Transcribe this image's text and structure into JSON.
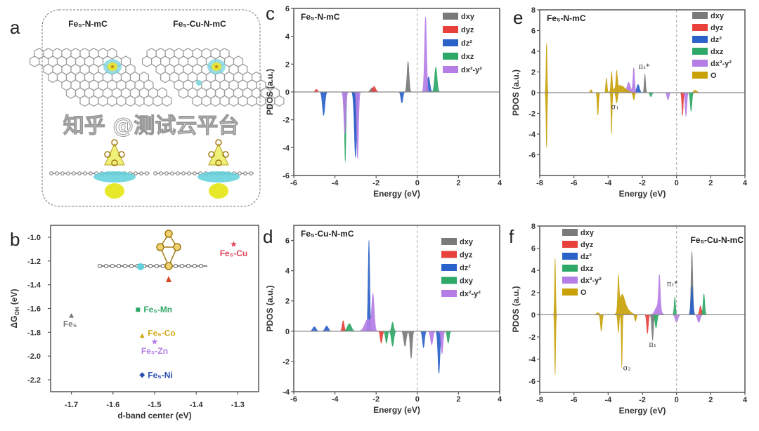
{
  "figure": {
    "watermark": "知乎 @测试云平台"
  },
  "panel_a": {
    "label": "a",
    "titles": [
      "Fe₅-N-mC",
      "Fe₅-Cu-N-mC"
    ]
  },
  "colors": {
    "dxy": "#7a7a7a",
    "dyz": "#e8413c",
    "dz2": "#2a62c9",
    "dxz": "#2ea866",
    "dx2y2": "#b57ee6",
    "O": "#c9a20a"
  },
  "chart_data": [
    {
      "id": "b",
      "panel_label": "b",
      "type": "scatter",
      "xlabel": "d-band center (eV)",
      "ylabel": {
        "main": "ΔG",
        "sub": "OH",
        "unit": " (eV)"
      },
      "xlim": [
        -1.75,
        -1.25
      ],
      "ylim": [
        -2.3,
        -0.9
      ],
      "xticks": [
        "-1.7",
        "-1.6",
        "-1.5",
        "-1.4",
        "-1.3"
      ],
      "yticks": [
        "-1.0",
        "-1.2",
        "-1.4",
        "-1.6",
        "-1.8",
        "-2.0",
        "-2.2"
      ],
      "points": [
        {
          "label": "Fe₅",
          "x": -1.7,
          "y": -1.66,
          "color": "#777777",
          "marker": "triangle"
        },
        {
          "label": "Fe₅-Mn",
          "x": -1.54,
          "y": -1.61,
          "color": "#2ea866",
          "marker": "square"
        },
        {
          "label": "Fe₅-Co",
          "x": -1.53,
          "y": -1.83,
          "color": "#d4a813",
          "marker": "triangle"
        },
        {
          "label": "Fe₅-Zn",
          "x": -1.5,
          "y": -1.88,
          "color": "#b57ee6",
          "marker": "star"
        },
        {
          "label": "Fe₅-Ni",
          "x": -1.53,
          "y": -2.16,
          "color": "#2a4fb0",
          "marker": "diamond"
        },
        {
          "label": "Fe₅-Cu",
          "x": -1.31,
          "y": -1.06,
          "color": "#e0445a",
          "marker": "star"
        }
      ]
    },
    {
      "id": "c",
      "panel_label": "c",
      "type": "area",
      "title": "Fe₅-N-mC",
      "xlabel": "Energy (eV)",
      "ylabel": "PDOS (a.u.)",
      "xlim": [
        -6,
        4
      ],
      "ylim": [
        -6,
        6
      ],
      "xticks": [
        "-6",
        "-4",
        "-2",
        "0",
        "2",
        "4"
      ],
      "yticks": [
        "-6",
        "-4",
        "-2",
        "0",
        "2",
        "4",
        "6"
      ],
      "fermi_level": 0,
      "series": [
        {
          "name": "dxy",
          "key": "dxy",
          "peaks": [
            [
              -0.45,
              2.2,
              0.05
            ],
            [
              -3.0,
              -3.0,
              0.06
            ],
            [
              -2.2,
              0.3,
              0.08
            ]
          ]
        },
        {
          "name": "dyz",
          "key": "dyz",
          "peaks": [
            [
              -2.1,
              0.4,
              0.08
            ],
            [
              -4.9,
              0.2,
              0.06
            ]
          ]
        },
        {
          "name": "dz²",
          "key": "dz2",
          "peaks": [
            [
              -4.55,
              -1.7,
              0.06
            ],
            [
              -3.0,
              -4.7,
              0.06
            ],
            [
              -0.75,
              -0.8,
              0.05
            ],
            [
              0.55,
              1.1,
              0.06
            ]
          ]
        },
        {
          "name": "dxz",
          "key": "dxz",
          "peaks": [
            [
              -3.5,
              -5.0,
              0.035
            ],
            [
              0.9,
              1.8,
              0.06
            ]
          ]
        },
        {
          "name": "dx²-y²",
          "key": "dx2y2",
          "peaks": [
            [
              0.4,
              5.4,
              0.05
            ],
            [
              -2.9,
              -4.8,
              0.045
            ],
            [
              -3.52,
              -3.0,
              0.05
            ]
          ]
        }
      ],
      "annotations": []
    },
    {
      "id": "d",
      "panel_label": "d",
      "type": "area",
      "title": "Fe₅-Cu-N-mC",
      "xlabel": "Energy (eV)",
      "ylabel": "PDOS (a.u.)",
      "xlim": [
        -6,
        4
      ],
      "ylim": [
        -4,
        7
      ],
      "xticks": [
        "-6",
        "-4",
        "-2",
        "0",
        "2",
        "4"
      ],
      "yticks": [
        "-4",
        "-2",
        "0",
        "2",
        "4",
        "6"
      ],
      "fermi_level": 0,
      "series": [
        {
          "name": "dxy",
          "key": "dxy",
          "peaks": [
            [
              -0.3,
              -1.8,
              0.05
            ],
            [
              -0.6,
              -1.0,
              0.06
            ]
          ]
        },
        {
          "name": "dyz",
          "key": "dyz",
          "peaks": [
            [
              -3.6,
              0.7,
              0.05
            ],
            [
              -1.75,
              -0.8,
              0.05
            ]
          ]
        },
        {
          "name": "dz²",
          "key": "dz2",
          "peaks": [
            [
              -2.35,
              6.0,
              0.04
            ],
            [
              -5.0,
              0.3,
              0.08
            ],
            [
              -4.4,
              0.35,
              0.08
            ],
            [
              1.05,
              -2.8,
              0.05
            ],
            [
              0.3,
              -1.1,
              0.05
            ]
          ]
        },
        {
          "name": "dxy",
          "key": "dxz",
          "peaks": [
            [
              -3.3,
              0.5,
              0.1
            ],
            [
              -1.5,
              -0.8,
              0.05
            ],
            [
              -1.2,
              -1.0,
              0.06
            ],
            [
              -1.2,
              0.6,
              0.05
            ],
            [
              1.5,
              -0.8,
              0.05
            ]
          ]
        },
        {
          "name": "dx²-y²",
          "key": "dx2y2",
          "peaks": [
            [
              -2.15,
              2.3,
              0.06
            ],
            [
              -2.4,
              0.8,
              0.15
            ],
            [
              0.7,
              -0.9,
              0.06
            ],
            [
              1.2,
              -1.5,
              0.05
            ]
          ]
        }
      ],
      "annotations": []
    },
    {
      "id": "e",
      "panel_label": "e",
      "type": "area",
      "title": "Fe₅-N-mC",
      "xlabel": "Energy (eV)",
      "ylabel": "PDOS (a.u.)",
      "xlim": [
        -8,
        4
      ],
      "ylim": [
        -8,
        8
      ],
      "xticks": [
        "-8",
        "-6",
        "-4",
        "-2",
        "0",
        "2",
        "4"
      ],
      "yticks": [
        "-6",
        "-4",
        "-2",
        "0",
        "2",
        "4",
        "6",
        "8"
      ],
      "fermi_level": 0,
      "series": [
        {
          "name": "dxy",
          "key": "dxy",
          "peaks": [
            [
              -1.85,
              1.8,
              0.04
            ]
          ]
        },
        {
          "name": "dyz",
          "key": "dyz",
          "peaks": [
            [
              0.35,
              -2.2,
              0.04
            ]
          ]
        },
        {
          "name": "dz²",
          "key": "dz2",
          "peaks": [
            [
              -2.25,
              0.8,
              0.08
            ]
          ]
        },
        {
          "name": "dxz",
          "key": "dxz",
          "peaks": [
            [
              0.85,
              -1.8,
              0.05
            ],
            [
              -1.5,
              -0.4,
              0.06
            ]
          ]
        },
        {
          "name": "dx²-y²",
          "key": "dx2y2",
          "peaks": [
            [
              -2.5,
              2.4,
              0.05
            ],
            [
              -2.8,
              1.0,
              0.1
            ],
            [
              -0.5,
              -0.7,
              0.06
            ],
            [
              0.55,
              -2.3,
              0.05
            ]
          ]
        },
        {
          "name": "O",
          "key": "O",
          "peaks": [
            [
              -7.6,
              4.8,
              0.03
            ],
            [
              -7.6,
              -5.3,
              0.03
            ],
            [
              -4.6,
              -2.2,
              0.04
            ],
            [
              -4.1,
              1.4,
              0.04
            ],
            [
              -3.8,
              1.9,
              0.04
            ],
            [
              -3.8,
              -4.0,
              0.03
            ],
            [
              -3.5,
              1.6,
              0.04
            ],
            [
              -3.3,
              0.7,
              0.3
            ],
            [
              -3.5,
              -1.0,
              0.05
            ],
            [
              -5.0,
              0.3,
              0.05
            ],
            [
              -2.5,
              -0.7,
              0.05
            ],
            [
              1.1,
              0.25,
              0.1
            ]
          ]
        }
      ],
      "annotations": [
        {
          "text": "π₁*",
          "x": -1.9,
          "y": 2.3
        },
        {
          "text": "σ₁",
          "x": -3.6,
          "y": -1.6
        }
      ]
    },
    {
      "id": "f",
      "panel_label": "f",
      "type": "area",
      "title": "Fe₅-Cu-N-mC",
      "xlabel": "Energy (eV)",
      "ylabel": "PDOS (a.u.)",
      "xlim": [
        -8,
        4
      ],
      "ylim": [
        -7,
        8
      ],
      "xticks": [
        "-8",
        "-6",
        "-4",
        "-2",
        "0",
        "2",
        "4"
      ],
      "yticks": [
        "-6",
        "-4",
        "-2",
        "0",
        "2",
        "4",
        "6",
        "8"
      ],
      "fermi_level": 0,
      "series": [
        {
          "name": "dxy",
          "key": "dxy",
          "peaks": [
            [
              0.9,
              5.7,
              0.05
            ],
            [
              -1.4,
              -2.3,
              0.05
            ]
          ]
        },
        {
          "name": "dyz",
          "key": "dyz",
          "peaks": [
            [
              -1.7,
              -1.7,
              0.05
            ],
            [
              1.4,
              0.8,
              0.06
            ]
          ]
        },
        {
          "name": "dz²",
          "key": "dz2",
          "peaks": [
            [
              0.9,
              2.6,
              0.06
            ]
          ]
        },
        {
          "name": "dxz",
          "key": "dxz",
          "peaks": [
            [
              -0.1,
              1.6,
              0.04
            ],
            [
              1.6,
              1.9,
              0.05
            ],
            [
              -1.2,
              -1.2,
              0.06
            ]
          ]
        },
        {
          "name": "dx²-y²",
          "key": "dx2y2",
          "peaks": [
            [
              -1.0,
              3.0,
              0.05
            ],
            [
              -1.1,
              0.8,
              0.15
            ],
            [
              0.0,
              -0.7,
              0.08
            ],
            [
              1.3,
              -0.7,
              0.08
            ]
          ]
        },
        {
          "name": "O",
          "key": "O",
          "peaks": [
            [
              -7.1,
              5.1,
              0.03
            ],
            [
              -7.1,
              -5.4,
              0.03
            ],
            [
              -4.4,
              -1.5,
              0.05
            ],
            [
              -4.6,
              0.2,
              0.08
            ],
            [
              -3.4,
              2.9,
              0.04
            ],
            [
              -3.2,
              1.4,
              0.15
            ],
            [
              -3.0,
              0.6,
              0.25
            ],
            [
              -3.2,
              -4.8,
              0.03
            ],
            [
              -3.4,
              -1.6,
              0.04
            ],
            [
              -2.4,
              -0.6,
              0.05
            ]
          ]
        }
      ],
      "annotations": [
        {
          "text": "π₁*",
          "x": -0.25,
          "y": 2.6
        },
        {
          "text": "π₁",
          "x": -1.4,
          "y": -2.9
        },
        {
          "text": "σ₂",
          "x": -2.9,
          "y": -5.0
        }
      ]
    }
  ]
}
